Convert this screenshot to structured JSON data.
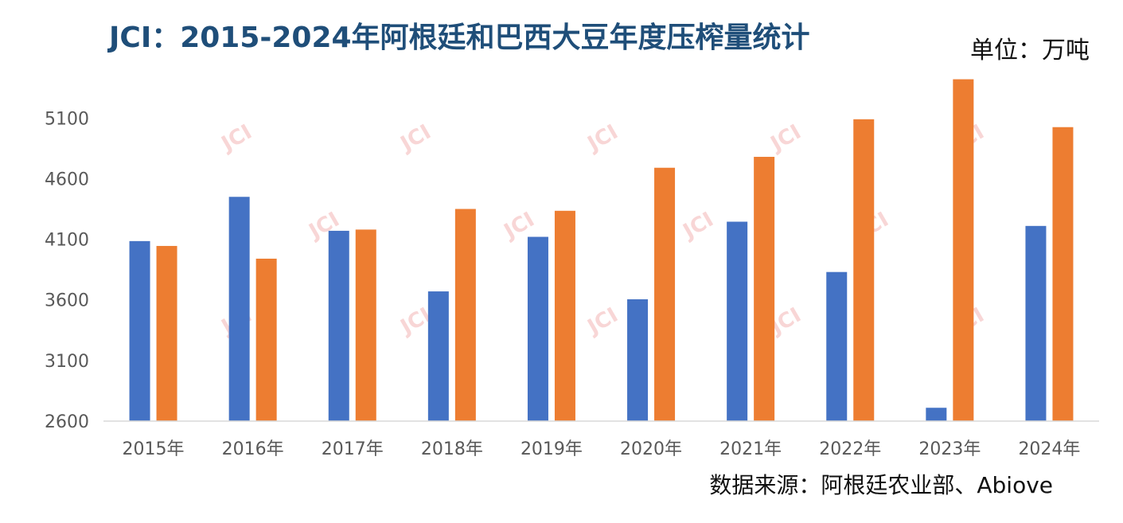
{
  "header": {
    "title": "JCI：2015-2024年阿根廷和巴西大豆年度压榨量统计",
    "unit": "单位：万吨"
  },
  "footer": {
    "source": "数据来源：阿根廷农业部、Abiove"
  },
  "watermark": {
    "text": "JCI"
  },
  "colors": {
    "title": "#1f4e79",
    "series_blue": "#4472c4",
    "series_orange": "#ed7d31",
    "axis": "#d9d9d9",
    "watermark": "#f4b6b6"
  },
  "chart_data": {
    "type": "bar",
    "title": "JCI：2015-2024年阿根廷和巴西大豆年度压榨量统计",
    "xlabel": "",
    "ylabel": "",
    "categories": [
      "2015年",
      "2016年",
      "2017年",
      "2018年",
      "2019年",
      "2020年",
      "2021年",
      "2022年",
      "2023年",
      "2024年"
    ],
    "series": [
      {
        "color": "#4472c4",
        "values": [
          4085,
          4450,
          4170,
          3670,
          4120,
          3605,
          4245,
          3830,
          2710,
          4210
        ]
      },
      {
        "color": "#ed7d31",
        "values": [
          4045,
          3940,
          4180,
          4350,
          4335,
          4690,
          4780,
          5090,
          5420,
          5025
        ]
      }
    ],
    "ylim": [
      2600,
      5450
    ],
    "yticks": [
      2600,
      3100,
      3600,
      4100,
      4600,
      5100
    ],
    "grid": false,
    "legend": "none"
  }
}
